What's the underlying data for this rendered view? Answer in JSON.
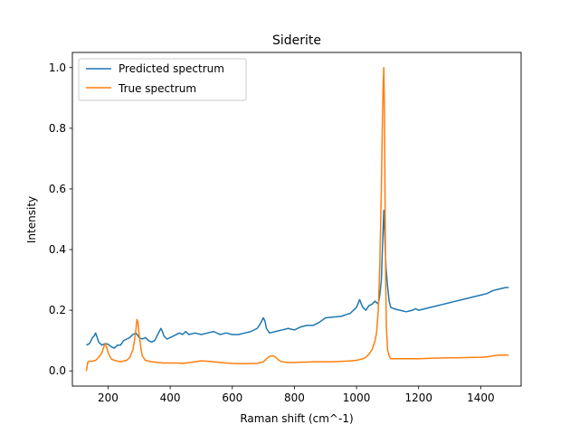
{
  "chart_data": {
    "type": "line",
    "title": "Siderite",
    "xlabel": "Raman shift (cm^-1)",
    "ylabel": "Intensity",
    "xlim": [
      85,
      1530
    ],
    "ylim": [
      -0.05,
      1.05
    ],
    "xticks": [
      200,
      400,
      600,
      800,
      1000,
      1200,
      1400
    ],
    "yticks": [
      0.0,
      0.2,
      0.4,
      0.6,
      0.8,
      1.0
    ],
    "xtick_labels": [
      "200",
      "400",
      "600",
      "800",
      "1000",
      "1200",
      "1400"
    ],
    "ytick_labels": [
      "0.0",
      "0.2",
      "0.4",
      "0.6",
      "0.8",
      "1.0"
    ],
    "grid": false,
    "legend_position": "top-left",
    "series": [
      {
        "name": "Predicted spectrum",
        "color": "#1f77b4",
        "x": [
          130,
          140,
          145,
          150,
          155,
          160,
          165,
          170,
          180,
          190,
          200,
          210,
          220,
          230,
          240,
          250,
          260,
          270,
          280,
          290,
          300,
          310,
          320,
          330,
          340,
          350,
          360,
          370,
          375,
          380,
          390,
          400,
          410,
          420,
          430,
          440,
          450,
          460,
          480,
          500,
          520,
          540,
          560,
          580,
          600,
          620,
          640,
          660,
          680,
          690,
          700,
          705,
          710,
          720,
          740,
          760,
          780,
          800,
          820,
          840,
          860,
          880,
          900,
          950,
          980,
          1000,
          1010,
          1020,
          1030,
          1040,
          1050,
          1060,
          1070,
          1075,
          1080,
          1085,
          1088,
          1092,
          1095,
          1100,
          1105,
          1110,
          1120,
          1140,
          1160,
          1180,
          1190,
          1200,
          1220,
          1240,
          1260,
          1280,
          1300,
          1320,
          1340,
          1360,
          1380,
          1400,
          1420,
          1440,
          1460,
          1480,
          1490
        ],
        "y": [
          0.085,
          0.09,
          0.1,
          0.11,
          0.115,
          0.125,
          0.11,
          0.095,
          0.085,
          0.09,
          0.088,
          0.08,
          0.075,
          0.085,
          0.085,
          0.1,
          0.105,
          0.11,
          0.12,
          0.125,
          0.11,
          0.105,
          0.11,
          0.1,
          0.095,
          0.1,
          0.12,
          0.14,
          0.13,
          0.115,
          0.105,
          0.11,
          0.115,
          0.12,
          0.125,
          0.12,
          0.13,
          0.12,
          0.125,
          0.12,
          0.125,
          0.13,
          0.12,
          0.125,
          0.12,
          0.12,
          0.125,
          0.13,
          0.14,
          0.155,
          0.175,
          0.165,
          0.14,
          0.125,
          0.13,
          0.135,
          0.14,
          0.135,
          0.145,
          0.15,
          0.15,
          0.16,
          0.175,
          0.18,
          0.19,
          0.21,
          0.235,
          0.21,
          0.2,
          0.215,
          0.22,
          0.23,
          0.22,
          0.25,
          0.3,
          0.45,
          0.53,
          0.42,
          0.34,
          0.28,
          0.23,
          0.21,
          0.205,
          0.2,
          0.195,
          0.2,
          0.205,
          0.2,
          0.205,
          0.21,
          0.215,
          0.22,
          0.225,
          0.23,
          0.235,
          0.24,
          0.245,
          0.25,
          0.255,
          0.265,
          0.27,
          0.275,
          0.275
        ]
      },
      {
        "name": "True spectrum",
        "color": "#ff7f0e",
        "x": [
          130,
          135,
          140,
          150,
          160,
          170,
          180,
          185,
          190,
          195,
          200,
          210,
          220,
          240,
          260,
          270,
          280,
          285,
          290,
          293,
          296,
          300,
          305,
          310,
          320,
          340,
          360,
          380,
          400,
          420,
          440,
          460,
          480,
          500,
          520,
          540,
          560,
          580,
          600,
          620,
          640,
          660,
          680,
          700,
          710,
          720,
          730,
          740,
          750,
          760,
          780,
          800,
          820,
          840,
          860,
          880,
          900,
          920,
          940,
          960,
          980,
          1000,
          1020,
          1030,
          1040,
          1050,
          1060,
          1065,
          1070,
          1075,
          1080,
          1083,
          1086,
          1088,
          1090,
          1092,
          1094,
          1096,
          1100,
          1105,
          1110,
          1120,
          1140,
          1160,
          1180,
          1200,
          1250,
          1300,
          1350,
          1400,
          1420,
          1430,
          1440,
          1460,
          1480,
          1490
        ],
        "y": [
          0.0,
          0.03,
          0.032,
          0.032,
          0.035,
          0.045,
          0.06,
          0.075,
          0.09,
          0.08,
          0.06,
          0.04,
          0.035,
          0.03,
          0.035,
          0.045,
          0.07,
          0.1,
          0.14,
          0.17,
          0.16,
          0.12,
          0.08,
          0.05,
          0.035,
          0.03,
          0.028,
          0.026,
          0.026,
          0.026,
          0.025,
          0.027,
          0.03,
          0.033,
          0.032,
          0.03,
          0.028,
          0.026,
          0.025,
          0.024,
          0.024,
          0.024,
          0.025,
          0.03,
          0.04,
          0.048,
          0.05,
          0.045,
          0.035,
          0.03,
          0.028,
          0.028,
          0.029,
          0.029,
          0.03,
          0.03,
          0.03,
          0.03,
          0.031,
          0.032,
          0.033,
          0.035,
          0.04,
          0.045,
          0.055,
          0.07,
          0.1,
          0.13,
          0.2,
          0.35,
          0.6,
          0.8,
          0.95,
          1.0,
          0.85,
          0.55,
          0.3,
          0.15,
          0.07,
          0.05,
          0.04,
          0.04,
          0.04,
          0.04,
          0.04,
          0.04,
          0.042,
          0.043,
          0.044,
          0.045,
          0.046,
          0.048,
          0.05,
          0.052,
          0.052,
          0.052
        ]
      }
    ]
  }
}
